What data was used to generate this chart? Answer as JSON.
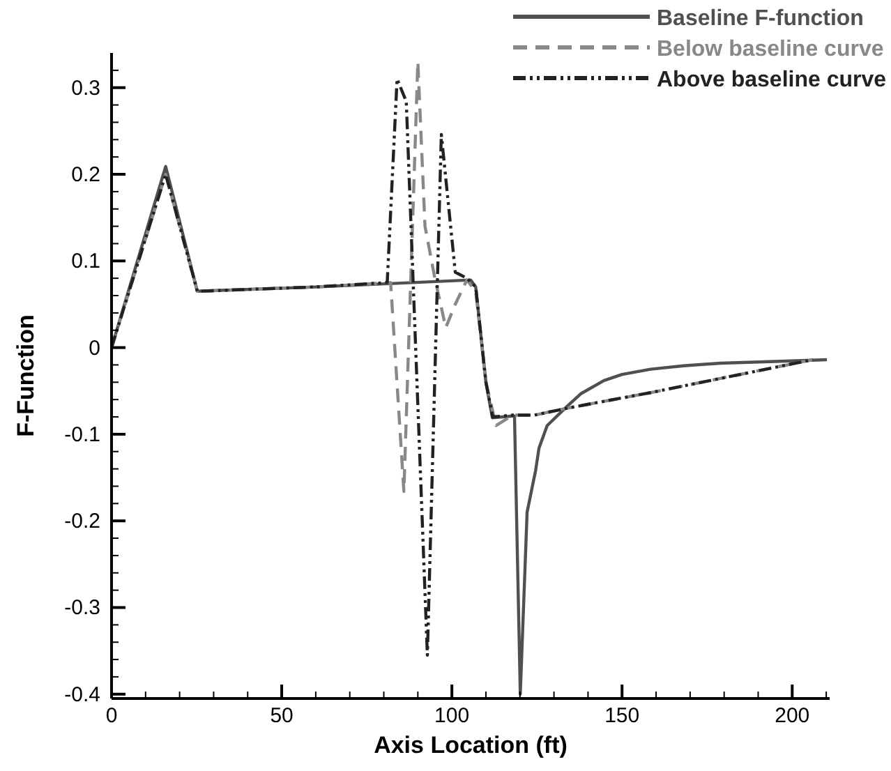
{
  "chart_data": {
    "type": "line",
    "xlabel": "Axis Location (ft)",
    "ylabel": "F-Function",
    "xlim": [
      0,
      211
    ],
    "ylim": [
      -0.405,
      0.34
    ],
    "xticks": [
      0,
      {
        "value": 10,
        "label": null
      },
      {
        "value": 20,
        "label": null
      },
      {
        "value": 30,
        "label": null
      },
      {
        "value": 40,
        "label": null
      },
      50,
      {
        "value": 60,
        "label": null
      },
      {
        "value": 70,
        "label": null
      },
      {
        "value": 80,
        "label": null
      },
      {
        "value": 90,
        "label": null
      },
      100,
      {
        "value": 110,
        "label": null
      },
      {
        "value": 120,
        "label": null
      },
      {
        "value": 130,
        "label": null
      },
      {
        "value": 140,
        "label": null
      },
      150,
      {
        "value": 160,
        "label": null
      },
      {
        "value": 170,
        "label": null
      },
      {
        "value": 180,
        "label": null
      },
      {
        "value": 190,
        "label": null
      },
      200,
      {
        "value": 210,
        "label": null
      }
    ],
    "yticks": [
      {
        "value": -0.4,
        "label": "-0.4"
      },
      {
        "value": -0.38,
        "label": null
      },
      {
        "value": -0.36,
        "label": null
      },
      {
        "value": -0.34,
        "label": null
      },
      {
        "value": -0.32,
        "label": null
      },
      {
        "value": -0.3,
        "label": "-0.3"
      },
      {
        "value": -0.28,
        "label": null
      },
      {
        "value": -0.26,
        "label": null
      },
      {
        "value": -0.24,
        "label": null
      },
      {
        "value": -0.22,
        "label": null
      },
      {
        "value": -0.2,
        "label": "-0.2"
      },
      {
        "value": -0.18,
        "label": null
      },
      {
        "value": -0.16,
        "label": null
      },
      {
        "value": -0.14,
        "label": null
      },
      {
        "value": -0.12,
        "label": null
      },
      {
        "value": -0.1,
        "label": "-0.1"
      },
      {
        "value": -0.08,
        "label": null
      },
      {
        "value": -0.06,
        "label": null
      },
      {
        "value": -0.04,
        "label": null
      },
      {
        "value": -0.02,
        "label": null
      },
      0,
      {
        "value": 0.02,
        "label": null
      },
      {
        "value": 0.04,
        "label": null
      },
      {
        "value": 0.06,
        "label": null
      },
      {
        "value": 0.08,
        "label": null
      },
      0.1,
      {
        "value": 0.12,
        "label": null
      },
      {
        "value": 0.14,
        "label": null
      },
      {
        "value": 0.16,
        "label": null
      },
      {
        "value": 0.18,
        "label": null
      },
      0.2,
      {
        "value": 0.22,
        "label": null
      },
      {
        "value": 0.24,
        "label": null
      },
      {
        "value": 0.26,
        "label": null
      },
      {
        "value": 0.28,
        "label": null
      },
      0.3,
      {
        "value": 0.32,
        "label": null
      }
    ],
    "grid": false,
    "legend": "top right",
    "marker": "none",
    "series": [
      {
        "name": "Baseline F-function",
        "color": "#505050",
        "line_style": "solid",
        "x": [
          0,
          15.9,
          25.2,
          60,
          105.5,
          107,
          110,
          111.9,
          117.9,
          118.4,
          120.1,
          122.1,
          124.6,
          125.6,
          128,
          133.8,
          138,
          144.7,
          150,
          158.4,
          168,
          178.9,
          195,
          210.2
        ],
        "values": [
          0,
          0.209,
          0.065,
          0.07,
          0.078,
          0.07,
          -0.04,
          -0.081,
          -0.079,
          -0.079,
          -0.4,
          -0.19,
          -0.142,
          -0.116,
          -0.09,
          -0.068,
          -0.053,
          -0.038,
          -0.031,
          -0.025,
          -0.021,
          -0.018,
          -0.016,
          -0.014
        ]
      },
      {
        "name": "Below baseline curve",
        "color": "#888888",
        "line_style": "dashed",
        "x": [
          0,
          15.9,
          25.2,
          60,
          82,
          85.9,
          90,
          92.1,
          95,
          98.2,
          101,
          104.4,
          107,
          110,
          113,
          117.9,
          124.2,
          133.8,
          158.4,
          206
        ],
        "values": [
          0,
          0.2,
          0.065,
          0.07,
          0.075,
          -0.166,
          0.33,
          0.14,
          0.08,
          0.023,
          0.05,
          0.078,
          0.065,
          -0.04,
          -0.09,
          -0.078,
          -0.078,
          -0.07,
          -0.052,
          -0.014
        ]
      },
      {
        "name": "Above baseline curve",
        "color": "#222222",
        "line_style": "dotted",
        "x": [
          0,
          15.9,
          25.2,
          60,
          81,
          83.9,
          86.6,
          92.8,
          96.9,
          101,
          104.4,
          107,
          110,
          112,
          117.9,
          124.2,
          133.8,
          158.4,
          206
        ],
        "values": [
          0,
          0.2,
          0.065,
          0.07,
          0.075,
          0.31,
          0.284,
          -0.355,
          0.246,
          0.087,
          0.08,
          0.07,
          -0.04,
          -0.08,
          -0.078,
          -0.078,
          -0.07,
          -0.052,
          -0.014
        ]
      }
    ]
  }
}
